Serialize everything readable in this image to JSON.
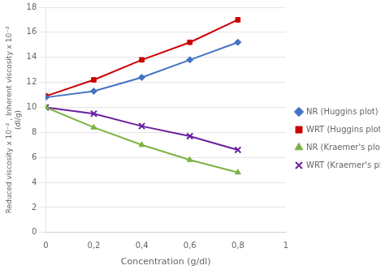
{
  "chart_data": {
    "type": "line",
    "xlabel": "Concentration (g/dl)",
    "ylabel": [
      "Reduced viscosity x 10⁻² , Inherent viscosity x 10⁻²",
      "(dl/g)"
    ],
    "x": [
      0,
      0.2,
      0.4,
      0.6,
      0.8
    ],
    "series": [
      {
        "name": "NR (Huggins plot)",
        "color": "#4472C4",
        "marker": "diamond",
        "values": [
          10.8,
          11.3,
          12.4,
          13.8,
          15.2
        ]
      },
      {
        "name": "WRT (Huggins plot)",
        "color": "#CC0000",
        "marker": "square",
        "values": [
          10.9,
          12.2,
          13.8,
          15.2,
          17.0
        ]
      },
      {
        "name": "NR (Kraemer's plot)",
        "color": "#7CB342",
        "marker": "triangle",
        "values": [
          10.0,
          8.4,
          7.0,
          5.8,
          4.8
        ]
      },
      {
        "name": "WRT (Kraemer's plot)",
        "color": "#6A1FA0",
        "marker": "x",
        "values": [
          10.0,
          9.5,
          8.5,
          7.7,
          6.6
        ]
      }
    ],
    "xlim": [
      0,
      1.0
    ],
    "ylim": [
      0,
      18
    ],
    "xticks": [
      0,
      {
        "value": 0.2,
        "label": "0,2"
      },
      {
        "value": 0.4,
        "label": "0,4"
      },
      {
        "value": 0.6,
        "label": "0,6"
      },
      {
        "value": 0.8,
        "label": "0,8"
      },
      1.0
    ],
    "yticks": [
      0,
      2,
      4,
      6,
      8,
      10,
      12,
      14,
      16,
      18
    ],
    "grid": "y",
    "legend": "right"
  }
}
